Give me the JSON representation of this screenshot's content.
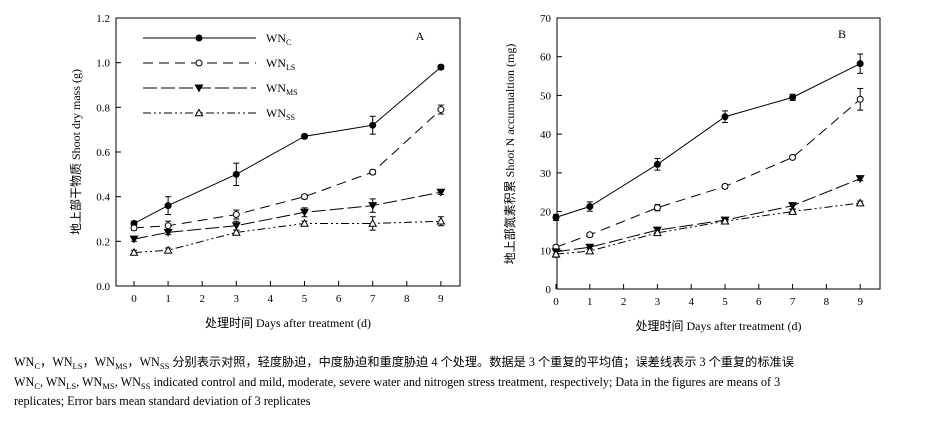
{
  "chart_data": [
    {
      "type": "line",
      "panel_label": "A",
      "ylabel": "地上部干物质 Shoot dry mass (g)",
      "xlabel": "处理时间 Days after treatment (d)",
      "ylim": [
        0,
        1.2
      ],
      "yticks": [
        "0.0",
        "0.2",
        "0.4",
        "0.6",
        "0.8",
        "1.0",
        "1.2"
      ],
      "xticks": [
        "0",
        "1",
        "2",
        "3",
        "4",
        "5",
        "6",
        "7",
        "8",
        "9"
      ],
      "x": [
        0,
        1,
        3,
        5,
        7,
        9
      ],
      "legend_position": "top-left",
      "series": [
        {
          "name": "WNc",
          "values": [
            0.28,
            0.36,
            0.5,
            0.67,
            0.72,
            0.98
          ],
          "errors": [
            0.01,
            0.04,
            0.05,
            0.01,
            0.04,
            0.01
          ]
        },
        {
          "name": "WNLS",
          "values": [
            0.26,
            0.27,
            0.32,
            0.4,
            0.51,
            0.79
          ],
          "errors": [
            0.01,
            0.02,
            0.02,
            0.01,
            0.01,
            0.02
          ]
        },
        {
          "name": "WNMS",
          "values": [
            0.21,
            0.24,
            0.27,
            0.33,
            0.36,
            0.42
          ],
          "errors": [
            0.01,
            0.01,
            0.02,
            0.02,
            0.03,
            0.01
          ]
        },
        {
          "name": "WNSS",
          "values": [
            0.15,
            0.16,
            0.24,
            0.28,
            0.28,
            0.29
          ],
          "errors": [
            0.01,
            0.01,
            0.01,
            0.01,
            0.03,
            0.02
          ]
        }
      ]
    },
    {
      "type": "line",
      "panel_label": "B",
      "ylabel": "地上部氮素积累 Shoot N accumualtion (mg)",
      "xlabel": "处理时间 Days after treatment (d)",
      "ylim": [
        0,
        70
      ],
      "yticks": [
        "0",
        "10",
        "20",
        "30",
        "40",
        "50",
        "60",
        "70"
      ],
      "xticks": [
        "0",
        "1",
        "2",
        "3",
        "4",
        "5",
        "6",
        "7",
        "8",
        "9"
      ],
      "x": [
        0,
        1,
        3,
        5,
        7,
        9
      ],
      "series": [
        {
          "name": "WNc",
          "values": [
            18.5,
            21.3,
            32.2,
            44.5,
            49.5,
            58.2
          ],
          "errors": [
            0.8,
            1.2,
            1.5,
            1.5,
            0.8,
            2.5
          ]
        },
        {
          "name": "WNLS",
          "values": [
            10.8,
            14.0,
            21.0,
            26.5,
            34.0,
            49.0
          ],
          "errors": [
            0.5,
            0.5,
            0.8,
            0.5,
            0.4,
            2.8
          ]
        },
        {
          "name": "WNMS",
          "values": [
            9.6,
            10.8,
            15.2,
            17.8,
            21.5,
            28.5
          ],
          "errors": [
            0.5,
            0.5,
            0.6,
            0.5,
            0.8,
            0.5
          ]
        },
        {
          "name": "WNSS",
          "values": [
            9.0,
            9.8,
            14.5,
            17.5,
            20.0,
            22.2
          ],
          "errors": [
            0.8,
            0.6,
            0.5,
            0.5,
            0.5,
            0.5
          ]
        }
      ]
    }
  ],
  "legend": [
    {
      "base": "WN",
      "sub": "C"
    },
    {
      "base": "WN",
      "sub": "LS"
    },
    {
      "base": "WN",
      "sub": "MS"
    },
    {
      "base": "WN",
      "sub": "SS"
    }
  ],
  "caption": {
    "cn_pre": "WN",
    "cn_sub1": "C",
    "cn_sep1": "，WN",
    "cn_sub2": "LS",
    "cn_sep2": "，WN",
    "cn_sub3": "MS",
    "cn_sep3": "，WN",
    "cn_sub4": "SS",
    "cn_post": " 分别表示对照，轻度胁迫，中度胁迫和重度胁迫 4 个处理。数据是 3 个重复的平均值；误差线表示 3 个重复的标准误",
    "en1_pre": "WN",
    "en1_sub1": "C",
    "en1_sep1": ", WN",
    "en1_sub2": "LS",
    "en1_sep2": ", WN",
    "en1_sub3": "MS",
    "en1_sep3": ", WN",
    "en1_sub4": "SS",
    "en1_post": " indicated control and mild, moderate, severe water and nitrogen stress treatment, respectively; Data in the figures are means of 3",
    "en2": "replicates; Error bars mean standard deviation of 3 replicates"
  }
}
